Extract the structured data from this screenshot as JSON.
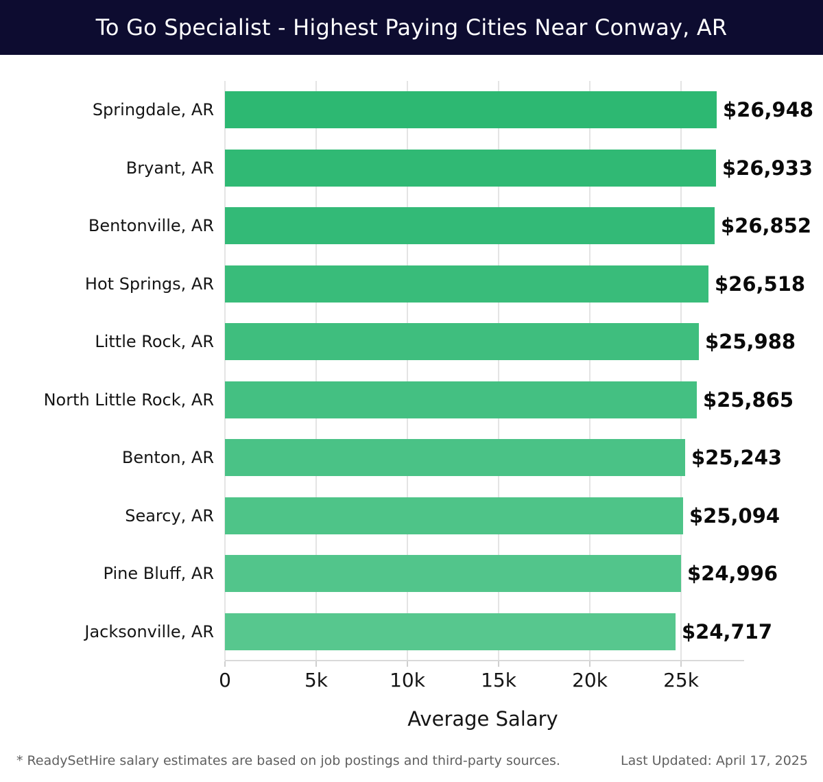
{
  "header": {
    "title": "To Go Specialist - Highest Paying Cities Near Conway, AR"
  },
  "chart_data": {
    "type": "bar",
    "orientation": "horizontal",
    "title": "To Go Specialist - Highest Paying Cities Near Conway, AR",
    "categories": [
      "Springdale, AR",
      "Bryant, AR",
      "Bentonville, AR",
      "Hot Springs, AR",
      "Little Rock, AR",
      "North Little Rock, AR",
      "Benton, AR",
      "Searcy, AR",
      "Pine Bluff, AR",
      "Jacksonville, AR"
    ],
    "values": [
      26948,
      26933,
      26852,
      26518,
      25988,
      25865,
      25243,
      25094,
      24996,
      24717
    ],
    "value_labels": [
      "$26,948",
      "$26,933",
      "$26,852",
      "$26,518",
      "$25,988",
      "$25,865",
      "$25,243",
      "$25,094",
      "$24,996",
      "$24,717"
    ],
    "bar_colors": [
      "#2db872",
      "#30b974",
      "#33ba77",
      "#39bc7a",
      "#3fbe7e",
      "#44c082",
      "#4ac286",
      "#4ec488",
      "#52c58b",
      "#57c78e"
    ],
    "xlabel": "Average Salary",
    "ylabel": "",
    "x_tick_labels": [
      "0",
      "5k",
      "10k",
      "15k",
      "20k",
      "25k"
    ],
    "x_tick_values": [
      0,
      5000,
      10000,
      15000,
      20000,
      25000
    ],
    "xlim": [
      0,
      28270
    ],
    "grid": "vertical-gridlines-on"
  },
  "colors": {
    "header_bg": "#0d0c30",
    "title_text": "#ffffff",
    "gridline": "#e4e4e4",
    "axis_line": "#d9d9d9",
    "tick_mark": "#cfcfcf",
    "label_text": "#151515",
    "value_text": "#0a0a0a",
    "footer_text": "#5f5f5f",
    "background": "#ffffff"
  },
  "footer": {
    "note": "* ReadySetHire salary estimates are based on job postings and third-party sources.",
    "last_updated": "Last Updated: April 17, 2025"
  }
}
